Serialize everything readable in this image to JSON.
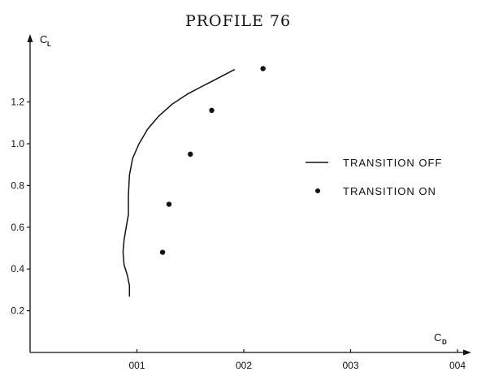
{
  "chart_data": {
    "type": "scatter",
    "title": "PROFILE 76",
    "xlabel": "C",
    "xlabel_sub": "D",
    "ylabel": "C",
    "ylabel_sub": "L",
    "xlim": [
      0,
      0.04
    ],
    "ylim": [
      0,
      1.45
    ],
    "x_ticks": [
      0.01,
      0.02,
      0.03,
      0.04
    ],
    "x_tick_labels": [
      "001",
      "002",
      "003",
      "004"
    ],
    "y_ticks": [
      0.2,
      0.4,
      0.6,
      0.8,
      1.0,
      1.2
    ],
    "y_tick_labels": [
      "0.2",
      "0.4",
      "0.6",
      "0.8",
      "1.0",
      "1.2"
    ],
    "grid": false,
    "legend_position": "right",
    "series": [
      {
        "name": "TRANSITION OFF",
        "style": "line",
        "points": [
          [
            0.0093,
            0.27
          ],
          [
            0.0093,
            0.32
          ],
          [
            0.0091,
            0.37
          ],
          [
            0.0088,
            0.42
          ],
          [
            0.0087,
            0.48
          ],
          [
            0.0088,
            0.54
          ],
          [
            0.009,
            0.6
          ],
          [
            0.0092,
            0.66
          ],
          [
            0.0092,
            0.75
          ],
          [
            0.0093,
            0.85
          ],
          [
            0.0096,
            0.93
          ],
          [
            0.0102,
            1.0
          ],
          [
            0.011,
            1.07
          ],
          [
            0.012,
            1.13
          ],
          [
            0.0133,
            1.19
          ],
          [
            0.0148,
            1.24
          ],
          [
            0.0163,
            1.28
          ],
          [
            0.0178,
            1.32
          ],
          [
            0.0191,
            1.355
          ]
        ]
      },
      {
        "name": "TRANSITION ON",
        "style": "markers",
        "points": [
          [
            0.0124,
            0.48
          ],
          [
            0.013,
            0.71
          ],
          [
            0.015,
            0.95
          ],
          [
            0.017,
            1.16
          ],
          [
            0.0218,
            1.36
          ]
        ]
      }
    ],
    "legend": [
      {
        "label": "TRANSITION OFF",
        "marker": "line"
      },
      {
        "label": "TRANSITION ON",
        "marker": "dot"
      }
    ]
  }
}
